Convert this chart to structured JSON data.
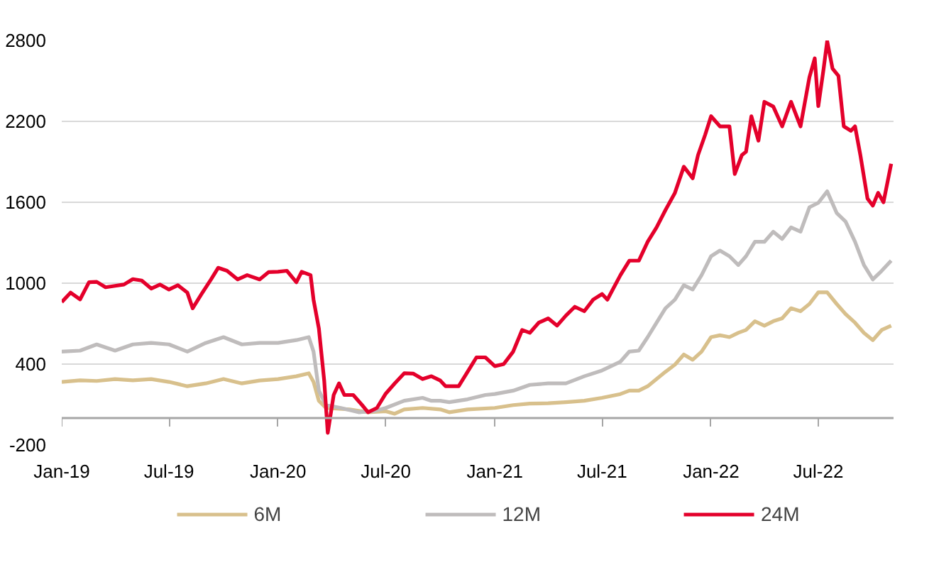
{
  "chart_data": {
    "type": "line",
    "xlim": [
      "2019-01-01",
      "2022-11-05"
    ],
    "ylim": [
      -200,
      2800
    ],
    "xticks": [
      {
        "value": "2019-01-01",
        "label": "Jan-19"
      },
      {
        "value": "2019-07-01",
        "label": "Jul-19"
      },
      {
        "value": "2020-01-01",
        "label": "Jan-20"
      },
      {
        "value": "2020-07-01",
        "label": "Jul-20"
      },
      {
        "value": "2021-01-01",
        "label": "Jan-21"
      },
      {
        "value": "2021-07-01",
        "label": "Jul-21"
      },
      {
        "value": "2022-01-01",
        "label": "Jan-22"
      },
      {
        "value": "2022-07-01",
        "label": "Jul-22"
      }
    ],
    "yticks": [
      -200,
      400,
      1000,
      1600,
      2200,
      2800
    ],
    "grid": "y",
    "legend": "bottom",
    "marker": "none",
    "line_style": "solid",
    "series": [
      {
        "name": "6M",
        "color": "#d8c08c",
        "x": [
          "2019-01-01",
          "2019-02-01",
          "2019-03-01",
          "2019-04-01",
          "2019-05-01",
          "2019-06-01",
          "2019-07-01",
          "2019-08-01",
          "2019-09-01",
          "2019-10-01",
          "2019-11-01",
          "2019-12-01",
          "2020-01-01",
          "2020-02-01",
          "2020-02-22",
          "2020-03-01",
          "2020-03-10",
          "2020-03-22",
          "2020-05-01",
          "2020-06-01",
          "2020-07-01",
          "2020-07-16",
          "2020-08-01",
          "2020-09-01",
          "2020-10-01",
          "2020-10-16",
          "2020-11-16",
          "2021-01-01",
          "2021-02-01",
          "2021-03-01",
          "2021-04-01",
          "2021-05-01",
          "2021-06-01",
          "2021-07-01",
          "2021-08-01",
          "2021-08-16",
          "2021-09-01",
          "2021-09-16",
          "2021-10-01",
          "2021-10-16",
          "2021-11-01",
          "2021-11-16",
          "2021-12-01",
          "2021-12-16",
          "2022-01-01",
          "2022-01-16",
          "2022-02-01",
          "2022-02-16",
          "2022-03-01",
          "2022-03-16",
          "2022-04-01",
          "2022-04-16",
          "2022-05-01",
          "2022-05-16",
          "2022-06-01",
          "2022-06-16",
          "2022-07-01",
          "2022-07-16",
          "2022-08-01",
          "2022-08-16",
          "2022-09-01",
          "2022-09-16",
          "2022-10-01",
          "2022-10-16",
          "2022-11-01"
        ],
        "values": [
          268,
          280,
          275,
          289,
          280,
          289,
          268,
          236,
          257,
          289,
          257,
          278,
          289,
          310,
          332,
          268,
          128,
          75,
          64,
          43,
          50,
          32,
          64,
          75,
          64,
          43,
          64,
          75,
          96,
          107,
          110,
          118,
          128,
          150,
          178,
          203,
          203,
          236,
          289,
          343,
          396,
          471,
          432,
          493,
          600,
          614,
          600,
          632,
          653,
          718,
          685,
          718,
          739,
          814,
          792,
          846,
          932,
          932,
          846,
          771,
          707,
          632,
          578,
          653,
          685
        ]
      },
      {
        "name": "12M",
        "color": "#bfbcbc",
        "x": [
          "2019-01-01",
          "2019-02-01",
          "2019-03-01",
          "2019-04-01",
          "2019-05-01",
          "2019-06-01",
          "2019-07-01",
          "2019-08-01",
          "2019-09-01",
          "2019-10-01",
          "2019-11-01",
          "2019-12-01",
          "2020-01-01",
          "2020-02-01",
          "2020-02-22",
          "2020-03-01",
          "2020-03-10",
          "2020-03-22",
          "2020-04-16",
          "2020-05-16",
          "2020-06-10",
          "2020-07-01",
          "2020-08-01",
          "2020-09-01",
          "2020-09-16",
          "2020-10-01",
          "2020-10-16",
          "2020-11-16",
          "2020-12-16",
          "2021-01-01",
          "2021-02-01",
          "2021-03-01",
          "2021-04-01",
          "2021-05-01",
          "2021-06-01",
          "2021-07-01",
          "2021-08-01",
          "2021-08-16",
          "2021-09-01",
          "2021-09-16",
          "2021-10-01",
          "2021-10-16",
          "2021-11-01",
          "2021-11-16",
          "2021-12-01",
          "2021-12-16",
          "2022-01-01",
          "2022-01-16",
          "2022-02-01",
          "2022-02-16",
          "2022-03-01",
          "2022-03-16",
          "2022-04-01",
          "2022-04-16",
          "2022-05-01",
          "2022-05-16",
          "2022-06-01",
          "2022-06-16",
          "2022-07-01",
          "2022-07-16",
          "2022-08-01",
          "2022-08-16",
          "2022-09-01",
          "2022-09-16",
          "2022-10-01",
          "2022-10-16",
          "2022-11-01"
        ],
        "values": [
          493,
          500,
          546,
          500,
          546,
          557,
          546,
          493,
          557,
          600,
          546,
          557,
          557,
          578,
          600,
          493,
          203,
          96,
          75,
          43,
          50,
          75,
          128,
          150,
          128,
          128,
          118,
          139,
          171,
          178,
          203,
          246,
          257,
          257,
          310,
          353,
          418,
          493,
          500,
          600,
          707,
          814,
          878,
          985,
          953,
          1060,
          1200,
          1242,
          1200,
          1135,
          1200,
          1307,
          1307,
          1382,
          1328,
          1414,
          1382,
          1563,
          1596,
          1681,
          1521,
          1457,
          1307,
          1135,
          1028,
          1092,
          1167
        ]
      },
      {
        "name": "24M",
        "color": "#e4002b",
        "x": [
          "2019-01-01",
          "2019-01-16",
          "2019-02-01",
          "2019-02-16",
          "2019-03-01",
          "2019-03-16",
          "2019-04-01",
          "2019-04-16",
          "2019-05-01",
          "2019-05-16",
          "2019-06-01",
          "2019-06-16",
          "2019-07-01",
          "2019-07-16",
          "2019-08-01",
          "2019-08-10",
          "2019-08-25",
          "2019-09-10",
          "2019-09-22",
          "2019-10-07",
          "2019-10-25",
          "2019-11-10",
          "2019-12-01",
          "2019-12-16",
          "2020-01-01",
          "2020-01-16",
          "2020-02-01",
          "2020-02-10",
          "2020-02-25",
          "2020-03-01",
          "2020-03-10",
          "2020-03-19",
          "2020-03-25",
          "2020-04-04",
          "2020-04-13",
          "2020-04-22",
          "2020-05-07",
          "2020-05-22",
          "2020-06-01",
          "2020-06-16",
          "2020-07-01",
          "2020-07-16",
          "2020-08-01",
          "2020-08-16",
          "2020-09-01",
          "2020-09-16",
          "2020-10-01",
          "2020-10-10",
          "2020-11-01",
          "2020-11-16",
          "2020-12-01",
          "2020-12-16",
          "2021-01-01",
          "2021-01-16",
          "2021-02-01",
          "2021-02-16",
          "2021-03-01",
          "2021-03-16",
          "2021-04-01",
          "2021-04-16",
          "2021-05-01",
          "2021-05-16",
          "2021-06-01",
          "2021-06-16",
          "2021-07-01",
          "2021-07-10",
          "2021-07-19",
          "2021-08-01",
          "2021-08-16",
          "2021-09-01",
          "2021-09-16",
          "2021-10-01",
          "2021-10-16",
          "2021-11-01",
          "2021-11-16",
          "2021-12-01",
          "2021-12-10",
          "2021-12-22",
          "2022-01-01",
          "2022-01-16",
          "2022-02-01",
          "2022-02-10",
          "2022-02-22",
          "2022-03-01",
          "2022-03-10",
          "2022-03-22",
          "2022-04-01",
          "2022-04-16",
          "2022-05-01",
          "2022-05-16",
          "2022-06-01",
          "2022-06-16",
          "2022-06-25",
          "2022-07-01",
          "2022-07-10",
          "2022-07-16",
          "2022-07-25",
          "2022-08-04",
          "2022-08-13",
          "2022-08-25",
          "2022-09-01",
          "2022-09-10",
          "2022-09-22",
          "2022-10-01",
          "2022-10-10",
          "2022-10-19",
          "2022-11-01"
        ],
        "values": [
          860,
          930,
          880,
          1007,
          1010,
          970,
          980,
          990,
          1030,
          1020,
          960,
          990,
          953,
          985,
          930,
          814,
          920,
          1028,
          1114,
          1092,
          1028,
          1060,
          1028,
          1082,
          1085,
          1092,
          1007,
          1085,
          1060,
          878,
          664,
          278,
          -110,
          171,
          257,
          171,
          171,
          96,
          43,
          75,
          182,
          257,
          332,
          330,
          289,
          310,
          278,
          236,
          236,
          343,
          450,
          450,
          385,
          400,
          493,
          653,
          632,
          707,
          739,
          685,
          760,
          825,
          792,
          878,
          920,
          878,
          953,
          1060,
          1167,
          1167,
          1307,
          1414,
          1542,
          1670,
          1864,
          1778,
          1950,
          2100,
          2238,
          2163,
          2163,
          1810,
          1950,
          1975,
          2238,
          2057,
          2345,
          2310,
          2163,
          2345,
          2163,
          2527,
          2667,
          2313,
          2592,
          2795,
          2592,
          2538,
          2163,
          2130,
          2163,
          1950,
          1628,
          1575,
          1670,
          1600,
          1885
        ]
      }
    ]
  }
}
